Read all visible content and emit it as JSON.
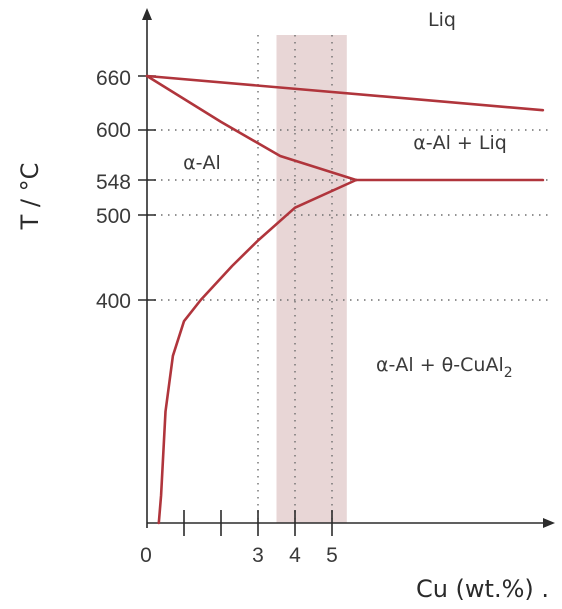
{
  "chart_data": {
    "type": "line",
    "title": "",
    "xlabel": "Cu  (wt.%) .",
    "ylabel": "T / °C",
    "x_ticks": [
      "0",
      "3",
      "4",
      "5"
    ],
    "y_ticks": [
      "660",
      "600",
      "548",
      "500",
      "400"
    ],
    "series": [
      {
        "points": [
          [
            0,
            660
          ],
          [
            10.7,
            622
          ]
        ]
      },
      {
        "points": [
          [
            0,
            660
          ],
          [
            2,
            609
          ],
          [
            3.6,
            573
          ],
          [
            5.65,
            548
          ]
        ]
      },
      {
        "points": [
          [
            5.65,
            548
          ],
          [
            10.7,
            548
          ]
        ]
      },
      {
        "points": [
          [
            5.65,
            548
          ],
          [
            4,
            510
          ],
          [
            3,
            470
          ],
          [
            2.3,
            440
          ],
          [
            1.45,
            400
          ],
          [
            1,
            362
          ],
          [
            0.7,
            300
          ],
          [
            0.5,
            200
          ],
          [
            0.38,
            50
          ],
          [
            0.32,
            0
          ]
        ]
      }
    ],
    "highlight_band": {
      "x_range": [
        3.5,
        5.4
      ],
      "color": "#e8d6d6"
    },
    "vertical_gridlines_x": [
      3,
      4,
      5
    ],
    "horizontal_gridlines_y": [
      600,
      548,
      500,
      400
    ],
    "region_labels": {
      "liquid": "Liq",
      "alpha": "α-Al",
      "alpha_liquid": "α-Al + Liq",
      "alpha_theta_prefix": "α-Al + θ-CuAl",
      "alpha_theta_subscript": "2"
    },
    "line_color": "#b0353c",
    "grid": true
  }
}
